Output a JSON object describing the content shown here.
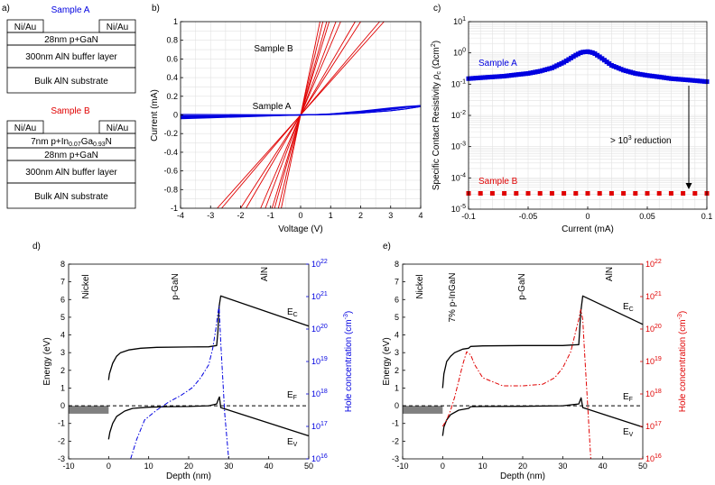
{
  "panel_labels": {
    "a": "a)",
    "b": "b)",
    "c": "c)",
    "d": "d)",
    "e": "e)"
  },
  "panel_a": {
    "sample_a": {
      "title": "Sample A",
      "contact_left": "Ni/Au",
      "contact_right": "Ni/Au",
      "layers": [
        "28nm p+GaN",
        "300nm AlN buffer layer",
        "Bulk AlN substrate"
      ]
    },
    "sample_b": {
      "title": "Sample B",
      "contact_left": "Ni/Au",
      "contact_right": "Ni/Au",
      "layer_ingan": {
        "pre": "7nm p+In",
        "sub1": "0.07",
        "mid": "Ga",
        "sub2": "0.93",
        "post": "N"
      },
      "layers": [
        "28nm p+GaN",
        "300nm AlN buffer layer",
        "Bulk AlN substrate"
      ]
    }
  },
  "chart_data": [
    {
      "id": "b",
      "type": "line",
      "title": "",
      "xlabel": "Voltage (V)",
      "ylabel": "Current (mA)",
      "xlim": [
        -4,
        4
      ],
      "ylim": [
        -1,
        1
      ],
      "xticks": [
        "-4",
        "-3",
        "-2",
        "-1",
        "0",
        "1",
        "2",
        "3",
        "4"
      ],
      "yticks": [
        "-1",
        "-0.8",
        "-0.6",
        "-0.4",
        "-0.2",
        "0",
        "0.2",
        "0.4",
        "0.6",
        "0.8",
        "1"
      ],
      "annotations": [
        {
          "text": "Sample B",
          "color": "#e00000"
        },
        {
          "text": "Sample A",
          "color": "#0000e0"
        }
      ],
      "series": [
        {
          "name": "Sample B",
          "color": "#e00000",
          "slopes_mA_per_V": [
            0.36,
            0.38,
            0.5,
            0.55,
            0.75,
            0.85,
            1.05,
            1.15,
            1.35,
            1.55
          ]
        },
        {
          "name": "Sample A",
          "color": "#0000e0",
          "curves": [
            {
              "x": [
                -4,
                -3,
                -2,
                -1,
                -0.5,
                0,
                0.5,
                1,
                2,
                3,
                3.5,
                4
              ],
              "y": [
                -0.01,
                -0.01,
                -0.005,
                -0.003,
                -0.001,
                0,
                0.002,
                0.005,
                0.02,
                0.045,
                0.065,
                0.09
              ]
            },
            {
              "x": [
                -4,
                -3,
                -2,
                -1,
                -0.5,
                0,
                0.5,
                1,
                2,
                3,
                3.5,
                4
              ],
              "y": [
                -0.02,
                -0.015,
                -0.01,
                -0.005,
                -0.002,
                0,
                0.002,
                0.005,
                0.02,
                0.045,
                0.065,
                0.09
              ]
            },
            {
              "x": [
                -4,
                -3,
                -2,
                -1,
                -0.5,
                0,
                0.5,
                1,
                2,
                3,
                3.5,
                4
              ],
              "y": [
                -0.04,
                -0.03,
                -0.02,
                -0.01,
                -0.005,
                0,
                0.003,
                0.01,
                0.03,
                0.06,
                0.08,
                0.1
              ]
            },
            {
              "x": [
                -4,
                -3,
                -2,
                -1,
                -0.5,
                0,
                0.5,
                1,
                2,
                3,
                3.5,
                4
              ],
              "y": [
                0.005,
                0.004,
                0.003,
                0.002,
                0.001,
                0,
                0.004,
                0.012,
                0.04,
                0.075,
                0.09,
                0.1
              ]
            },
            {
              "x": [
                -4,
                -3,
                -2,
                -1,
                -0.5,
                0,
                0.5,
                1,
                2,
                3,
                3.5,
                4
              ],
              "y": [
                -0.03,
                -0.02,
                -0.015,
                -0.008,
                -0.003,
                0,
                0.003,
                0.01,
                0.03,
                0.07,
                0.085,
                0.095
              ]
            }
          ]
        }
      ]
    },
    {
      "id": "c",
      "type": "scatter",
      "title": "",
      "xlabel": "Current (mA)",
      "ylabel": "Specific Contact Resistivity ρc (Ωcm²)",
      "ylabel_parts": {
        "main": "Specific Contact Resistivity ",
        "rho": "ρ",
        "rho_sub": "c",
        "unit": " (Ωcm",
        "unit_sup": "2",
        "close": ")"
      },
      "xlim": [
        -0.1,
        0.1
      ],
      "ylim_log10": [
        -5,
        1
      ],
      "yscale": "log",
      "xticks": [
        "-0.1",
        "-0.05",
        "0",
        "0.05",
        "0.1"
      ],
      "yticks_exp": [
        "1",
        "0",
        "-1",
        "-2",
        "-3",
        "-4",
        "-5"
      ],
      "ytick_base": "10",
      "annotation": {
        "pre": "> 10",
        "sup": "3",
        "post": " reduction"
      },
      "series": [
        {
          "name": "Sample A",
          "color": "#0000e0",
          "marker": "square",
          "x": [
            -0.1,
            -0.09,
            -0.08,
            -0.07,
            -0.06,
            -0.05,
            -0.04,
            -0.03,
            -0.02,
            -0.015,
            -0.01,
            -0.005,
            0,
            0.005,
            0.01,
            0.015,
            0.02,
            0.03,
            0.04,
            0.05,
            0.06,
            0.07,
            0.08,
            0.09,
            0.1
          ],
          "y": [
            0.15,
            0.16,
            0.17,
            0.18,
            0.2,
            0.22,
            0.26,
            0.33,
            0.5,
            0.65,
            0.85,
            1.05,
            1.1,
            1.0,
            0.75,
            0.55,
            0.4,
            0.28,
            0.22,
            0.19,
            0.17,
            0.15,
            0.14,
            0.13,
            0.12
          ]
        },
        {
          "name": "Sample B",
          "color": "#e00000",
          "marker": "square",
          "x": [
            -0.1,
            -0.09,
            -0.08,
            -0.07,
            -0.06,
            -0.05,
            -0.04,
            -0.03,
            -0.02,
            -0.01,
            0,
            0.01,
            0.02,
            0.03,
            0.04,
            0.05,
            0.06,
            0.07,
            0.08,
            0.09,
            0.1
          ],
          "y": [
            3.2e-05,
            3.2e-05,
            3.2e-05,
            3.2e-05,
            3.2e-05,
            3.2e-05,
            3.2e-05,
            3.2e-05,
            3.2e-05,
            3.2e-05,
            3.2e-05,
            3.2e-05,
            3.2e-05,
            3.2e-05,
            3.2e-05,
            3.2e-05,
            3.2e-05,
            3.2e-05,
            3.2e-05,
            3.2e-05,
            3.2e-05
          ]
        }
      ]
    },
    {
      "id": "d",
      "type": "line",
      "title": "",
      "xlabel": "Depth (nm)",
      "ylabel": "Energy (eV)",
      "y2label": "Hole concentration (cm⁻³)",
      "y2label_parts": {
        "main": "Hole concentration (cm",
        "sup": "-3",
        "close": ")"
      },
      "xlim": [
        -10,
        50
      ],
      "ylim": [
        -3,
        8
      ],
      "y2lim_log10": [
        16,
        22
      ],
      "xticks": [
        "-10",
        "0",
        "10",
        "20",
        "30",
        "40",
        "50"
      ],
      "yticks": [
        "-3",
        "-2",
        "-1",
        "0",
        "1",
        "2",
        "3",
        "4",
        "5",
        "6",
        "7",
        "8"
      ],
      "y2ticks_exp": [
        "22",
        "21",
        "20",
        "19",
        "18",
        "17",
        "16"
      ],
      "y2tick_base": "10",
      "region_labels": [
        "Nickel",
        "p-GaN",
        "AlN"
      ],
      "band_labels": {
        "ec": "E",
        "ec_sub": "C",
        "ef": "E",
        "ef_sub": "F",
        "ev": "E",
        "ev_sub": "V"
      },
      "y2color": "#0000e0",
      "series": [
        {
          "name": "Ec",
          "color": "#000000",
          "x": [
            0,
            0.2,
            1,
            2,
            3,
            5,
            8,
            12,
            20,
            25,
            27,
            27.3,
            27.6,
            28,
            50
          ],
          "y": [
            1.45,
            1.8,
            2.4,
            2.8,
            3.0,
            3.15,
            3.25,
            3.3,
            3.32,
            3.33,
            3.4,
            4.2,
            5.6,
            6.2,
            4.5
          ]
        },
        {
          "name": "Ev",
          "color": "#000000",
          "x": [
            0,
            0.3,
            1,
            2,
            4,
            6,
            10,
            15,
            20,
            25,
            27,
            27.4,
            27.7,
            28,
            50
          ],
          "y": [
            -1.9,
            -1.5,
            -1.0,
            -0.6,
            -0.3,
            -0.15,
            -0.08,
            -0.05,
            -0.04,
            0.0,
            0.1,
            0.35,
            0.5,
            -0.1,
            -1.7
          ]
        },
        {
          "name": "EF",
          "color": "#000000",
          "dash": "dashed",
          "x": [
            -10,
            50
          ],
          "y": [
            0,
            0
          ]
        },
        {
          "name": "Hole concentration",
          "color": "#0000e0",
          "dash": "dashdot",
          "x": [
            5.5,
            7,
            9,
            12,
            15,
            18,
            21,
            23,
            25,
            26,
            26.8,
            27.3,
            27.6,
            28,
            29,
            30
          ],
          "y_log10": [
            16,
            16.6,
            17.2,
            17.5,
            17.75,
            17.95,
            18.2,
            18.5,
            18.9,
            19.4,
            20.0,
            20.5,
            20.7,
            19.6,
            17.4,
            16
          ]
        },
        {
          "name": "Nickel metal (filled)",
          "color": "#808080",
          "x": [
            -10,
            0
          ],
          "y": [
            -0.45,
            0
          ]
        }
      ]
    },
    {
      "id": "e",
      "type": "line",
      "title": "",
      "xlabel": "Depth (nm)",
      "ylabel": "Energy (eV)",
      "y2label": "Hole concentration (cm⁻³)",
      "y2label_parts": {
        "main": "Hole concentration (cm",
        "sup": "-3",
        "close": ")"
      },
      "xlim": [
        -10,
        50
      ],
      "ylim": [
        -3,
        8
      ],
      "y2lim_log10": [
        16,
        22
      ],
      "xticks": [
        "-10",
        "0",
        "10",
        "20",
        "30",
        "40",
        "50"
      ],
      "yticks": [
        "-3",
        "-2",
        "-1",
        "0",
        "1",
        "2",
        "3",
        "4",
        "5",
        "6",
        "7",
        "8"
      ],
      "y2ticks_exp": [
        "22",
        "21",
        "20",
        "19",
        "18",
        "17",
        "16"
      ],
      "y2tick_base": "10",
      "region_labels": [
        "Nickel",
        "7% p-InGaN",
        "p-GaN",
        "AlN"
      ],
      "band_labels": {
        "ec": "E",
        "ec_sub": "C",
        "ef": "E",
        "ef_sub": "F",
        "ev": "E",
        "ev_sub": "V"
      },
      "y2color": "#e00000",
      "series": [
        {
          "name": "Ec",
          "color": "#000000",
          "x": [
            0,
            0.3,
            1,
            2,
            3,
            5,
            6.5,
            7,
            10,
            20,
            30,
            34,
            34.5,
            35,
            50
          ],
          "y": [
            1.0,
            1.8,
            2.5,
            2.8,
            3.0,
            3.2,
            3.25,
            3.35,
            3.38,
            3.4,
            3.4,
            3.45,
            5.3,
            6.2,
            4.6
          ]
        },
        {
          "name": "Ev",
          "color": "#000000",
          "x": [
            0,
            0.3,
            1,
            2,
            4,
            6.5,
            7,
            10,
            20,
            30,
            34,
            34.6,
            35,
            50
          ],
          "y": [
            -1.7,
            -1.2,
            -0.8,
            -0.5,
            -0.25,
            -0.15,
            -0.05,
            -0.04,
            -0.03,
            0.0,
            0.1,
            0.45,
            -0.1,
            -1.2
          ]
        },
        {
          "name": "EF",
          "color": "#000000",
          "dash": "dashed",
          "x": [
            -10,
            50
          ],
          "y": [
            0,
            0
          ]
        },
        {
          "name": "Hole concentration",
          "color": "#e00000",
          "dash": "dashdot",
          "x": [
            0,
            1,
            2,
            3,
            4,
            5,
            6,
            7,
            8,
            10,
            15,
            20,
            25,
            28,
            30,
            32,
            33,
            34,
            34.5,
            35,
            35.5,
            37
          ],
          "y_log10": [
            17,
            17.2,
            17.5,
            17.9,
            18.4,
            18.9,
            19.3,
            19.2,
            18.9,
            18.5,
            18.25,
            18.25,
            18.3,
            18.5,
            18.8,
            19.3,
            19.8,
            20.3,
            20.6,
            20.3,
            19.2,
            16
          ]
        },
        {
          "name": "Nickel metal (filled)",
          "color": "#808080",
          "x": [
            -10,
            0
          ],
          "y": [
            -0.45,
            0
          ]
        }
      ]
    }
  ]
}
